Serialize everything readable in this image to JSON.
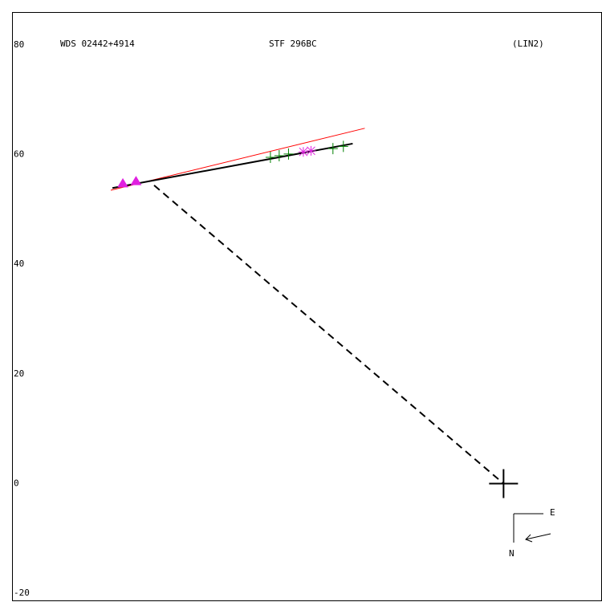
{
  "chart_data": {
    "type": "scatter",
    "titles": [
      "WDS 02442+4914",
      "STF 296BC",
      "(LIN2)"
    ],
    "xlim": [
      89.6,
      -17.8
    ],
    "ylim": [
      -21.3,
      86
    ],
    "yticks": [
      80,
      60,
      40,
      20,
      0,
      -20
    ],
    "compass": [
      "E",
      "N"
    ],
    "series": [
      {
        "marker": "triangle",
        "color": "#e020e0",
        "x": [
          69.4,
          67.0
        ],
        "y": [
          54.7,
          55.1
        ]
      },
      {
        "marker": "plus",
        "color": "#008000",
        "x": [
          42.5,
          40.9,
          39.2,
          31.1,
          29.2
        ],
        "y": [
          59.5,
          59.8,
          60.1,
          61.1,
          61.5
        ]
      },
      {
        "marker": "star",
        "color": "#e020e0",
        "x": [
          36.5,
          35.1
        ],
        "y": [
          60.5,
          60.7
        ]
      },
      {
        "marker": "cross",
        "color": "#000000",
        "x": [
          0
        ],
        "y": [
          0
        ]
      }
    ],
    "lines": [
      {
        "color": "#ff0000",
        "width": 1,
        "dash": false,
        "x": [
          71.6,
          25.3
        ],
        "y": [
          53.5,
          64.8
        ]
      },
      {
        "color": "#000000",
        "width": 2,
        "dash": false,
        "x": [
          71.3,
          27.5
        ],
        "y": [
          53.9,
          62.0
        ]
      },
      {
        "color": "#000000",
        "width": 2,
        "dash": true,
        "x": [
          63.7,
          0
        ],
        "y": [
          54.4,
          0
        ]
      }
    ]
  }
}
